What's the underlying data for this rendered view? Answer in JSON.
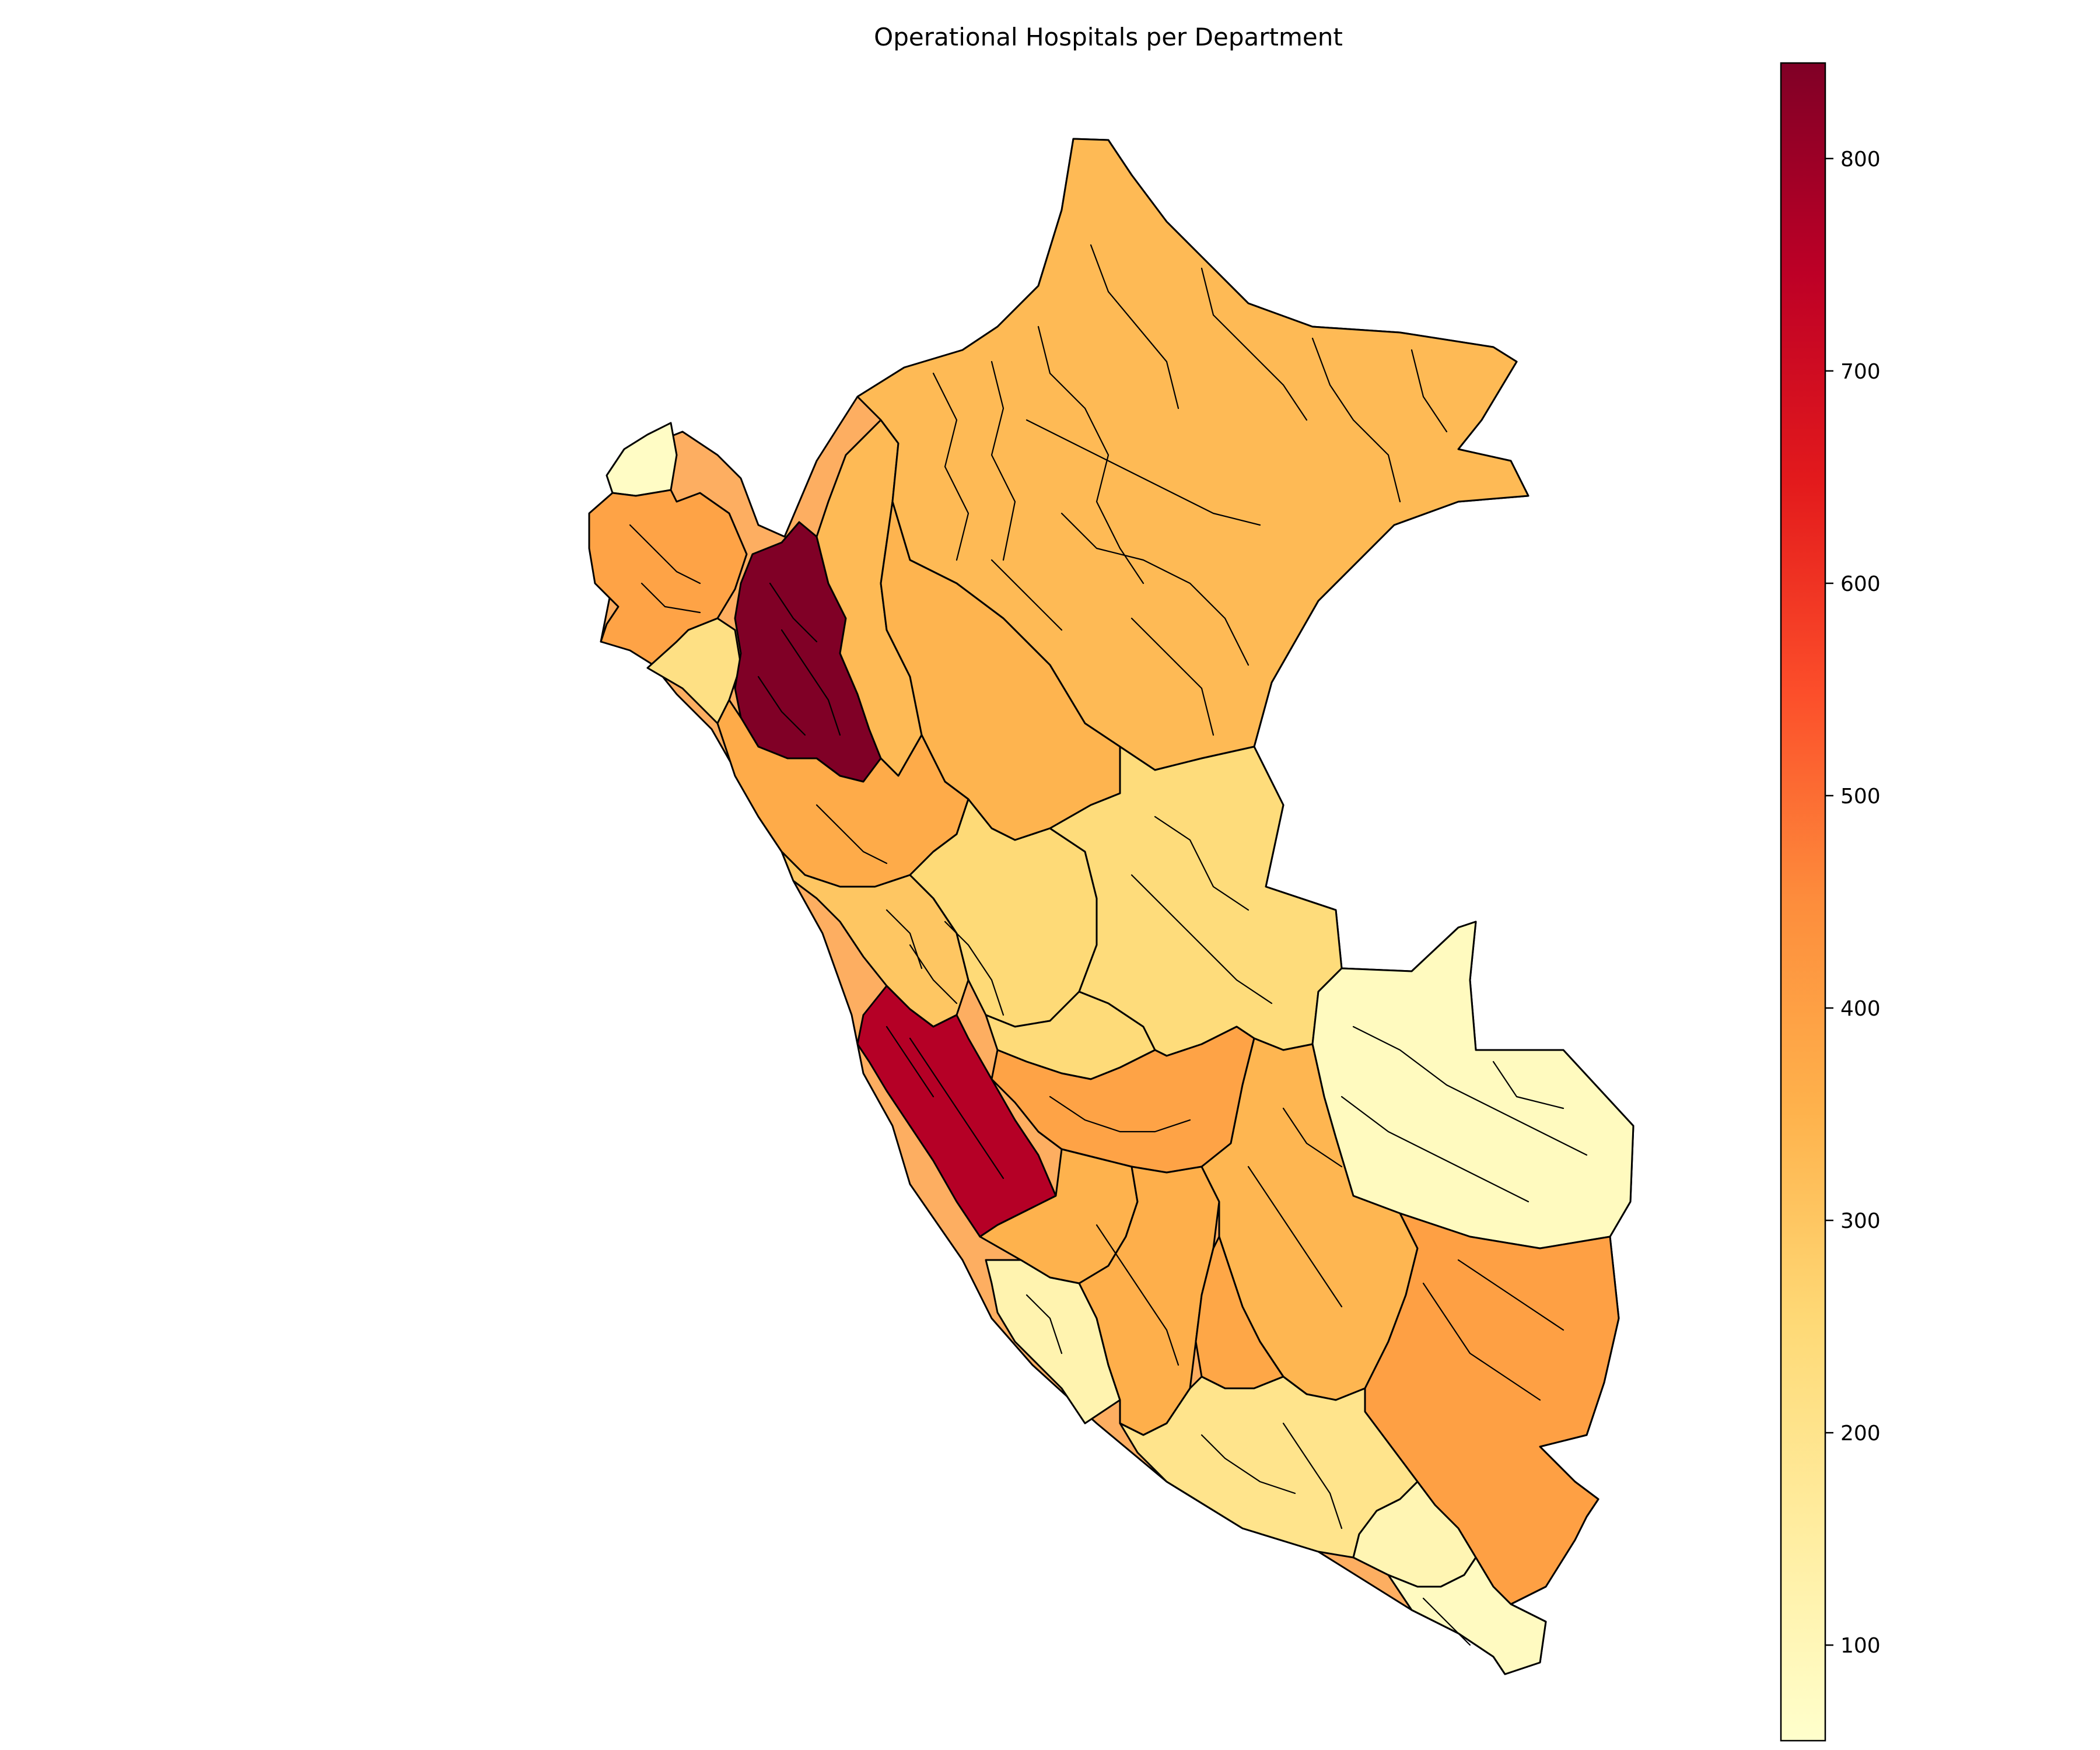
{
  "map": {
    "title": "Operational Hospitals per Department",
    "colormap": "YlOrRd",
    "colormap_stops": [
      "#ffffcc",
      "#ffeda0",
      "#fed976",
      "#feb24c",
      "#fd8d3c",
      "#fc4e2a",
      "#e31a1c",
      "#bd0026",
      "#800026"
    ],
    "value_range": [
      55,
      845
    ],
    "regions": [
      {
        "id": "tumbes",
        "value": 70
      },
      {
        "id": "piura",
        "value": 390
      },
      {
        "id": "lambayeque",
        "value": 220
      },
      {
        "id": "cajamarca",
        "value": 845
      },
      {
        "id": "amazonas",
        "value": 330
      },
      {
        "id": "loreto",
        "value": 330
      },
      {
        "id": "san-martin",
        "value": 345
      },
      {
        "id": "la-libertad",
        "value": 370
      },
      {
        "id": "ancash",
        "value": 300
      },
      {
        "id": "huanuco",
        "value": 250
      },
      {
        "id": "pasco",
        "value": 245
      },
      {
        "id": "ucayali",
        "value": 240
      },
      {
        "id": "lima",
        "value": 760
      },
      {
        "id": "junin",
        "value": 390
      },
      {
        "id": "madre-de-dios",
        "value": 85
      },
      {
        "id": "huancavelica",
        "value": 350
      },
      {
        "id": "ica",
        "value": 120
      },
      {
        "id": "ayacucho",
        "value": 360
      },
      {
        "id": "cusco",
        "value": 340
      },
      {
        "id": "apurimac",
        "value": 380
      },
      {
        "id": "puno",
        "value": 400
      },
      {
        "id": "arequipa",
        "value": 200
      },
      {
        "id": "moquegua",
        "value": 110
      },
      {
        "id": "tacna",
        "value": 80
      }
    ]
  },
  "colorbar": {
    "ticks": [
      {
        "value": 100,
        "label": "100"
      },
      {
        "value": 200,
        "label": "200"
      },
      {
        "value": 300,
        "label": "300"
      },
      {
        "value": 400,
        "label": "400"
      },
      {
        "value": 500,
        "label": "500"
      },
      {
        "value": 600,
        "label": "600"
      },
      {
        "value": 700,
        "label": "700"
      },
      {
        "value": 800,
        "label": "800"
      }
    ]
  }
}
